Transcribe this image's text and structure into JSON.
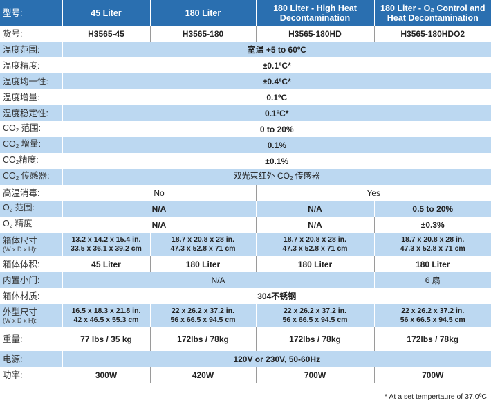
{
  "header": {
    "label": "型号:",
    "models": [
      "45 Liter",
      "180 Liter",
      "180 Liter - High Heat Decontamination",
      "180 Liter - O₂ Control and Heat Decontamination"
    ]
  },
  "rows": {
    "part_no": {
      "label": "货号:",
      "values": [
        "H3565-45",
        "H3565-180",
        "H3565-180HD",
        "H3565-180HDO2"
      ]
    },
    "temp_range": {
      "label": "温度范围:",
      "value": "室温 +5 to 60ºC"
    },
    "temp_accuracy": {
      "label": "温度精度:",
      "value": "±0.1ºC*"
    },
    "temp_uniformity": {
      "label": "温度均一性:",
      "value": "±0.4ºC*"
    },
    "temp_increment": {
      "label": "温度增量:",
      "value": "0.1ºC"
    },
    "temp_stability": {
      "label": "温度稳定性:",
      "value": "0.1ºC*"
    },
    "co2_range": {
      "label_pre": "CO",
      "label_sub": "2",
      "label_post": " 范围:",
      "value": "0 to 20%"
    },
    "co2_increment": {
      "label_pre": "CO",
      "label_sub": "2",
      "label_post": " 增量:",
      "value": "0.1%"
    },
    "co2_accuracy": {
      "label_pre": "CO",
      "label_sub": "2",
      "label_post": "精度:",
      "value": "±0.1%"
    },
    "co2_sensor": {
      "label_pre": "CO",
      "label_sub": "2",
      "label_post": " 传感器:",
      "value_pre": "双光束红外 CO",
      "value_sub": "2",
      "value_post": " 传感器"
    },
    "high_heat": {
      "label": "高温消毒:",
      "values": [
        "No",
        "Yes"
      ]
    },
    "o2_range": {
      "label_pre": "O",
      "label_sub": "2",
      "label_post": " 范围:",
      "values": [
        "N/A",
        "N/A",
        "0.5 to 20%"
      ]
    },
    "o2_accuracy": {
      "label_pre": "O",
      "label_sub": "2",
      "label_post": " 精度",
      "values": [
        "N/A",
        "N/A",
        "±0.3%"
      ]
    },
    "chamber_dims": {
      "label": "箱体尺寸",
      "sublabel": "(W x D x H):",
      "in": [
        "13.2 x 14.2 x 15.4 in.",
        "18.7 x 20.8 x 28 in.",
        "18.7 x 20.8 x 28 in.",
        "18.7 x 20.8 x 28 in."
      ],
      "cm": [
        "33.5 x 36.1 x 39.2 cm",
        "47.3 x 52.8 x 71 cm",
        "47.3 x 52.8 x 71 cm",
        "47.3 x 52.8 x 71 cm"
      ]
    },
    "chamber_volume": {
      "label": "箱体体积:",
      "values": [
        "45 Liter",
        "180 Liter",
        "180 Liter",
        "180 Liter"
      ]
    },
    "inner_doors": {
      "label": "内置小门:",
      "values": [
        "N/A",
        "6 扇"
      ]
    },
    "chamber_material": {
      "label": "箱体材质:",
      "value": "304不锈钢"
    },
    "external_dims": {
      "label": "外型尺寸",
      "sublabel": "(W x D x H):",
      "in": [
        "16.5 x 18.3 x 21.8 in.",
        "22 x 26.2 x 37.2 in.",
        "22 x 26.2 x 37.2 in.",
        "22 x 26.2 x 37.2 in."
      ],
      "cm": [
        "42 x 46.5 x 55.3 cm",
        "56 x 66.5 x 94.5 cm",
        "56 x 66.5 x 94.5 cm",
        "56 x 66.5 x 94.5 cm"
      ]
    },
    "weight": {
      "label": "重量:",
      "values": [
        "77 lbs / 35 kg",
        "172lbs / 78kg",
        "172lbs / 78kg",
        "172lbs / 78kg"
      ]
    },
    "power": {
      "label": "电源:",
      "value": "120V or 230V, 50-60Hz"
    },
    "wattage": {
      "label": "功率:",
      "values": [
        "300W",
        "420W",
        "700W",
        "700W"
      ]
    }
  },
  "footnote": "* At a set tempertaure of 37.0ºC",
  "colors": {
    "header": "#2a6fb0",
    "shade": "#bcd8f1"
  }
}
